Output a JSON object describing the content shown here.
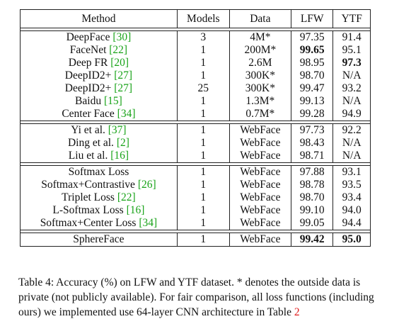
{
  "table": {
    "headers": [
      "Method",
      "Models",
      "Data",
      "LFW",
      "YTF"
    ],
    "groups": [
      {
        "rows": [
          {
            "method": "DeepFace",
            "ref": "[30]",
            "models": "3",
            "data": "4M*",
            "lfw": "97.35",
            "ytf": "91.4"
          },
          {
            "method": "FaceNet",
            "ref": "[22]",
            "models": "1",
            "data": "200M*",
            "lfw": "99.65",
            "ytf": "95.1",
            "lfw_bold": true
          },
          {
            "method": "Deep FR",
            "ref": "[20]",
            "models": "1",
            "data": "2.6M",
            "lfw": "98.95",
            "ytf": "97.3",
            "ytf_bold": true
          },
          {
            "method": "DeepID2+",
            "ref": "[27]",
            "models": "1",
            "data": "300K*",
            "lfw": "98.70",
            "ytf": "N/A"
          },
          {
            "method": "DeepID2+",
            "ref": "[27]",
            "models": "25",
            "data": "300K*",
            "lfw": "99.47",
            "ytf": "93.2"
          },
          {
            "method": "Baidu",
            "ref": "[15]",
            "models": "1",
            "data": "1.3M*",
            "lfw": "99.13",
            "ytf": "N/A"
          },
          {
            "method": "Center Face",
            "ref": "[34]",
            "models": "1",
            "data": "0.7M*",
            "lfw": "99.28",
            "ytf": "94.9"
          }
        ]
      },
      {
        "rows": [
          {
            "method": "Yi et al.",
            "ref": "[37]",
            "models": "1",
            "data": "WebFace",
            "lfw": "97.73",
            "ytf": "92.2"
          },
          {
            "method": "Ding et al.",
            "ref": "[2]",
            "models": "1",
            "data": "WebFace",
            "lfw": "98.43",
            "ytf": "N/A"
          },
          {
            "method": "Liu et al.",
            "ref": "[16]",
            "models": "1",
            "data": "WebFace",
            "lfw": "98.71",
            "ytf": "N/A"
          }
        ]
      },
      {
        "rows": [
          {
            "method": "Softmax Loss",
            "ref": "",
            "models": "1",
            "data": "WebFace",
            "lfw": "97.88",
            "ytf": "93.1"
          },
          {
            "method": "Softmax+Contrastive",
            "ref": "[26]",
            "models": "1",
            "data": "WebFace",
            "lfw": "98.78",
            "ytf": "93.5"
          },
          {
            "method": "Triplet Loss",
            "ref": "[22]",
            "models": "1",
            "data": "WebFace",
            "lfw": "98.70",
            "ytf": "93.4"
          },
          {
            "method": "L-Softmax Loss",
            "ref": "[16]",
            "models": "1",
            "data": "WebFace",
            "lfw": "99.10",
            "ytf": "94.0"
          },
          {
            "method": "Softmax+Center Loss",
            "ref": "[34]",
            "models": "1",
            "data": "WebFace",
            "lfw": "99.05",
            "ytf": "94.4"
          }
        ]
      },
      {
        "rows": [
          {
            "method": "SphereFace",
            "ref": "",
            "models": "1",
            "data": "WebFace",
            "lfw": "99.42",
            "ytf": "95.0",
            "lfw_bold": true,
            "ytf_bold": true
          }
        ]
      }
    ]
  },
  "caption": {
    "text": "Table 4: Accuracy (%) on LFW and YTF dataset. * denotes the outside data is private (not publicly available). For fair comparison, all loss functions (including ours) we implemented use 64-layer CNN architecture in Table ",
    "ref": "2"
  }
}
